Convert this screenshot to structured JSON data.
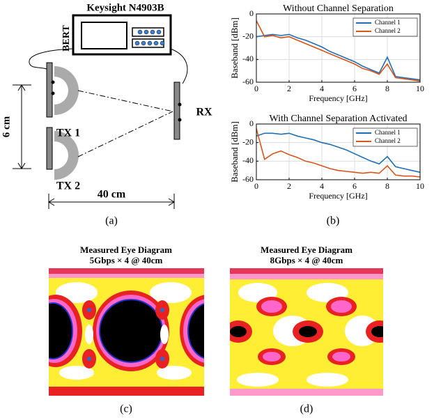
{
  "diagram": {
    "instrument": "Keysight N4903B",
    "bert": "BERT",
    "tx1": "TX 1",
    "tx2": "TX 2",
    "rx": "RX",
    "vertical_distance": "6 cm",
    "horizontal_distance": "40 cm"
  },
  "chart_data": [
    {
      "type": "line",
      "title": "Without Channel Separation",
      "x_label": "Frequency [GHz]",
      "y_label": "Baseband [dBm]",
      "x": [
        0,
        0.5,
        1,
        1.5,
        2,
        2.5,
        3,
        3.5,
        4,
        4.5,
        5,
        5.5,
        6,
        6.5,
        7,
        7.5,
        8,
        8.5,
        9,
        9.5,
        10
      ],
      "series": [
        {
          "name": "Channel 1",
          "color": "#1f6fb5",
          "values": [
            -20,
            -19,
            -18,
            -19,
            -18,
            -21,
            -23,
            -26,
            -29,
            -33,
            -36,
            -39,
            -42,
            -46,
            -49,
            -52,
            -38,
            -55,
            -56,
            -57,
            -58
          ]
        },
        {
          "name": "Channel 2",
          "color": "#d9541a",
          "values": [
            -6,
            -20,
            -19,
            -21,
            -20,
            -23,
            -26,
            -29,
            -32,
            -35,
            -38,
            -41,
            -44,
            -48,
            -50,
            -53,
            -44,
            -56,
            -57,
            -58,
            -59
          ]
        }
      ],
      "xlim": [
        0,
        10
      ],
      "xticks": [
        0,
        2,
        4,
        6,
        8,
        10
      ],
      "ylim": [
        -60,
        0
      ],
      "yticks": [
        0,
        -20,
        -40,
        -60
      ],
      "grid": true,
      "legend": "upper right"
    },
    {
      "type": "line",
      "title": "With Channel Separation Activated",
      "x_label": "Frequency [GHz]",
      "y_label": "Baseband [dBm]",
      "x": [
        0,
        0.5,
        1,
        1.5,
        2,
        2.5,
        3,
        3.5,
        4,
        4.5,
        5,
        5.5,
        6,
        6.5,
        7,
        7.5,
        8,
        8.5,
        9,
        9.5,
        10
      ],
      "series": [
        {
          "name": "Channel 1",
          "color": "#1f6fb5",
          "values": [
            -13,
            -10,
            -10,
            -11,
            -10,
            -13,
            -15,
            -17,
            -20,
            -22,
            -25,
            -28,
            -32,
            -36,
            -40,
            -43,
            -35,
            -46,
            -48,
            -50,
            -52
          ]
        },
        {
          "name": "Channel 2",
          "color": "#d9541a",
          "values": [
            -5,
            -38,
            -32,
            -29,
            -33,
            -36,
            -40,
            -42,
            -45,
            -48,
            -50,
            -51,
            -52,
            -53,
            -52,
            -53,
            -45,
            -55,
            -56,
            -56,
            -57
          ]
        }
      ],
      "xlim": [
        0,
        10
      ],
      "xticks": [
        0,
        2,
        4,
        6,
        8,
        10
      ],
      "ylim": [
        -60,
        0
      ],
      "yticks": [
        0,
        -20,
        -40,
        -60
      ],
      "grid": true,
      "legend": "upper right"
    }
  ],
  "eye_diagrams": [
    {
      "title": "Measured Eye Diagram",
      "subtitle": "5Gbps × 4 @ 40cm"
    },
    {
      "title": "Measured Eye Diagram",
      "subtitle": "8Gbps × 4 @ 40cm"
    }
  ],
  "captions": [
    "(a)",
    "(b)",
    "(c)",
    "(d)"
  ]
}
